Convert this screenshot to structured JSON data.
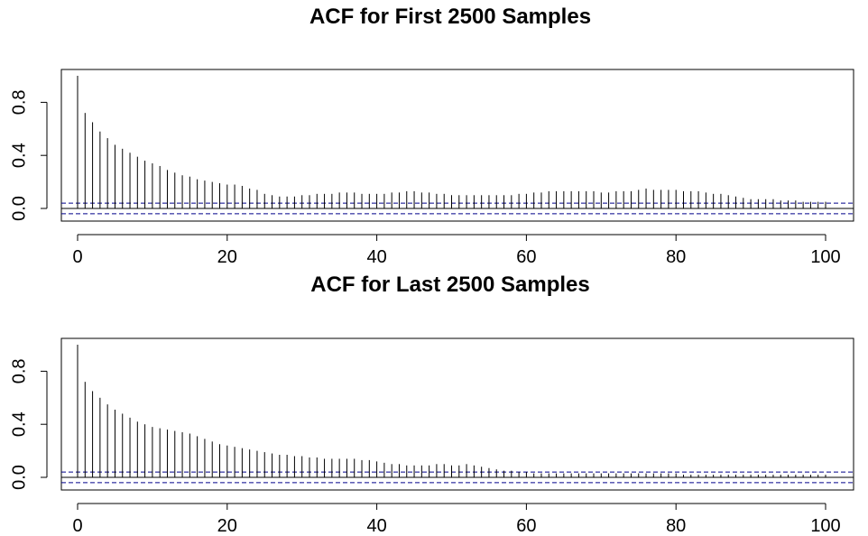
{
  "chart_data": [
    {
      "type": "bar",
      "title": "ACF for First 2500 Samples",
      "xlabel": "",
      "ylabel": "",
      "xlim": [
        0,
        100
      ],
      "ylim": [
        -0.05,
        1.0
      ],
      "x_ticks": [
        0,
        20,
        40,
        60,
        80,
        100
      ],
      "y_ticks": [
        0.0,
        0.4,
        0.8
      ],
      "y_tick_labels": [
        "0.0",
        "0.4",
        "0.8"
      ],
      "confidence_bound": 0.04,
      "confidence_color": "#00008b",
      "lags": "0-100",
      "values": [
        1.0,
        0.72,
        0.65,
        0.58,
        0.53,
        0.48,
        0.45,
        0.42,
        0.39,
        0.36,
        0.34,
        0.32,
        0.29,
        0.27,
        0.25,
        0.24,
        0.22,
        0.21,
        0.2,
        0.19,
        0.18,
        0.18,
        0.17,
        0.15,
        0.14,
        0.11,
        0.1,
        0.09,
        0.09,
        0.09,
        0.1,
        0.1,
        0.11,
        0.11,
        0.11,
        0.12,
        0.12,
        0.12,
        0.11,
        0.11,
        0.11,
        0.11,
        0.12,
        0.12,
        0.13,
        0.13,
        0.12,
        0.12,
        0.11,
        0.11,
        0.1,
        0.1,
        0.1,
        0.1,
        0.1,
        0.1,
        0.1,
        0.1,
        0.1,
        0.11,
        0.11,
        0.12,
        0.12,
        0.13,
        0.13,
        0.13,
        0.13,
        0.13,
        0.13,
        0.13,
        0.12,
        0.12,
        0.13,
        0.13,
        0.13,
        0.14,
        0.15,
        0.14,
        0.14,
        0.14,
        0.14,
        0.13,
        0.13,
        0.13,
        0.12,
        0.11,
        0.11,
        0.1,
        0.09,
        0.08,
        0.07,
        0.07,
        0.07,
        0.07,
        0.06,
        0.06,
        0.06,
        0.05,
        0.05,
        0.05,
        0.05
      ]
    },
    {
      "type": "bar",
      "title": "ACF for Last 2500 Samples",
      "xlabel": "",
      "ylabel": "",
      "xlim": [
        0,
        100
      ],
      "ylim": [
        -0.05,
        1.0
      ],
      "x_ticks": [
        0,
        20,
        40,
        60,
        80,
        100
      ],
      "y_ticks": [
        0.0,
        0.4,
        0.8
      ],
      "y_tick_labels": [
        "0.0",
        "0.4",
        "0.8"
      ],
      "confidence_bound": 0.04,
      "confidence_color": "#00008b",
      "lags": "0-100",
      "values": [
        1.0,
        0.72,
        0.65,
        0.6,
        0.55,
        0.51,
        0.48,
        0.45,
        0.42,
        0.4,
        0.38,
        0.37,
        0.36,
        0.35,
        0.34,
        0.33,
        0.31,
        0.29,
        0.27,
        0.25,
        0.24,
        0.23,
        0.22,
        0.21,
        0.2,
        0.19,
        0.18,
        0.17,
        0.17,
        0.16,
        0.16,
        0.15,
        0.15,
        0.14,
        0.14,
        0.14,
        0.14,
        0.14,
        0.13,
        0.13,
        0.12,
        0.11,
        0.1,
        0.1,
        0.09,
        0.09,
        0.09,
        0.09,
        0.1,
        0.1,
        0.09,
        0.09,
        0.1,
        0.09,
        0.08,
        0.07,
        0.06,
        0.05,
        0.05,
        0.04,
        0.04,
        0.03,
        0.03,
        0.03,
        0.03,
        0.03,
        0.03,
        0.03,
        0.03,
        0.03,
        0.03,
        0.03,
        0.03,
        0.03,
        0.03,
        0.03,
        0.03,
        0.03,
        0.03,
        0.03,
        0.03,
        0.02,
        0.02,
        0.02,
        0.02,
        0.02,
        0.02,
        0.02,
        0.02,
        0.02,
        0.02,
        0.02,
        0.02,
        0.02,
        0.02,
        0.02,
        0.02,
        0.02,
        0.02,
        0.02,
        0.02
      ]
    }
  ]
}
